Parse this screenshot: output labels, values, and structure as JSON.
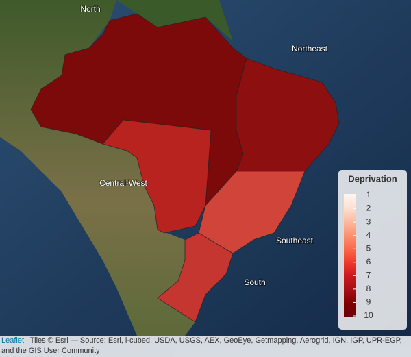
{
  "map": {
    "regions": [
      "North",
      "Northeast",
      "Central-West",
      "Southeast",
      "South"
    ],
    "legend": {
      "title": "Deprivation",
      "ticks": [
        1,
        2,
        3,
        4,
        5,
        6,
        7,
        8,
        9,
        10
      ],
      "colors": [
        "#fff5f0",
        "#fee0d2",
        "#fcbba1",
        "#fc9272",
        "#fb6a4a",
        "#ef3b2c",
        "#cb181d",
        "#a50f15",
        "#7f0000",
        "#67000d"
      ]
    },
    "attribution": {
      "link": "Leaflet",
      "text": "| Tiles © Esri — Source: Esri, i-cubed, USDA, USGS, AEX, GeoEye, Getmapping, Aerogrid, IGN, IGP, UPR-EGP, and the GIS User Community"
    }
  }
}
